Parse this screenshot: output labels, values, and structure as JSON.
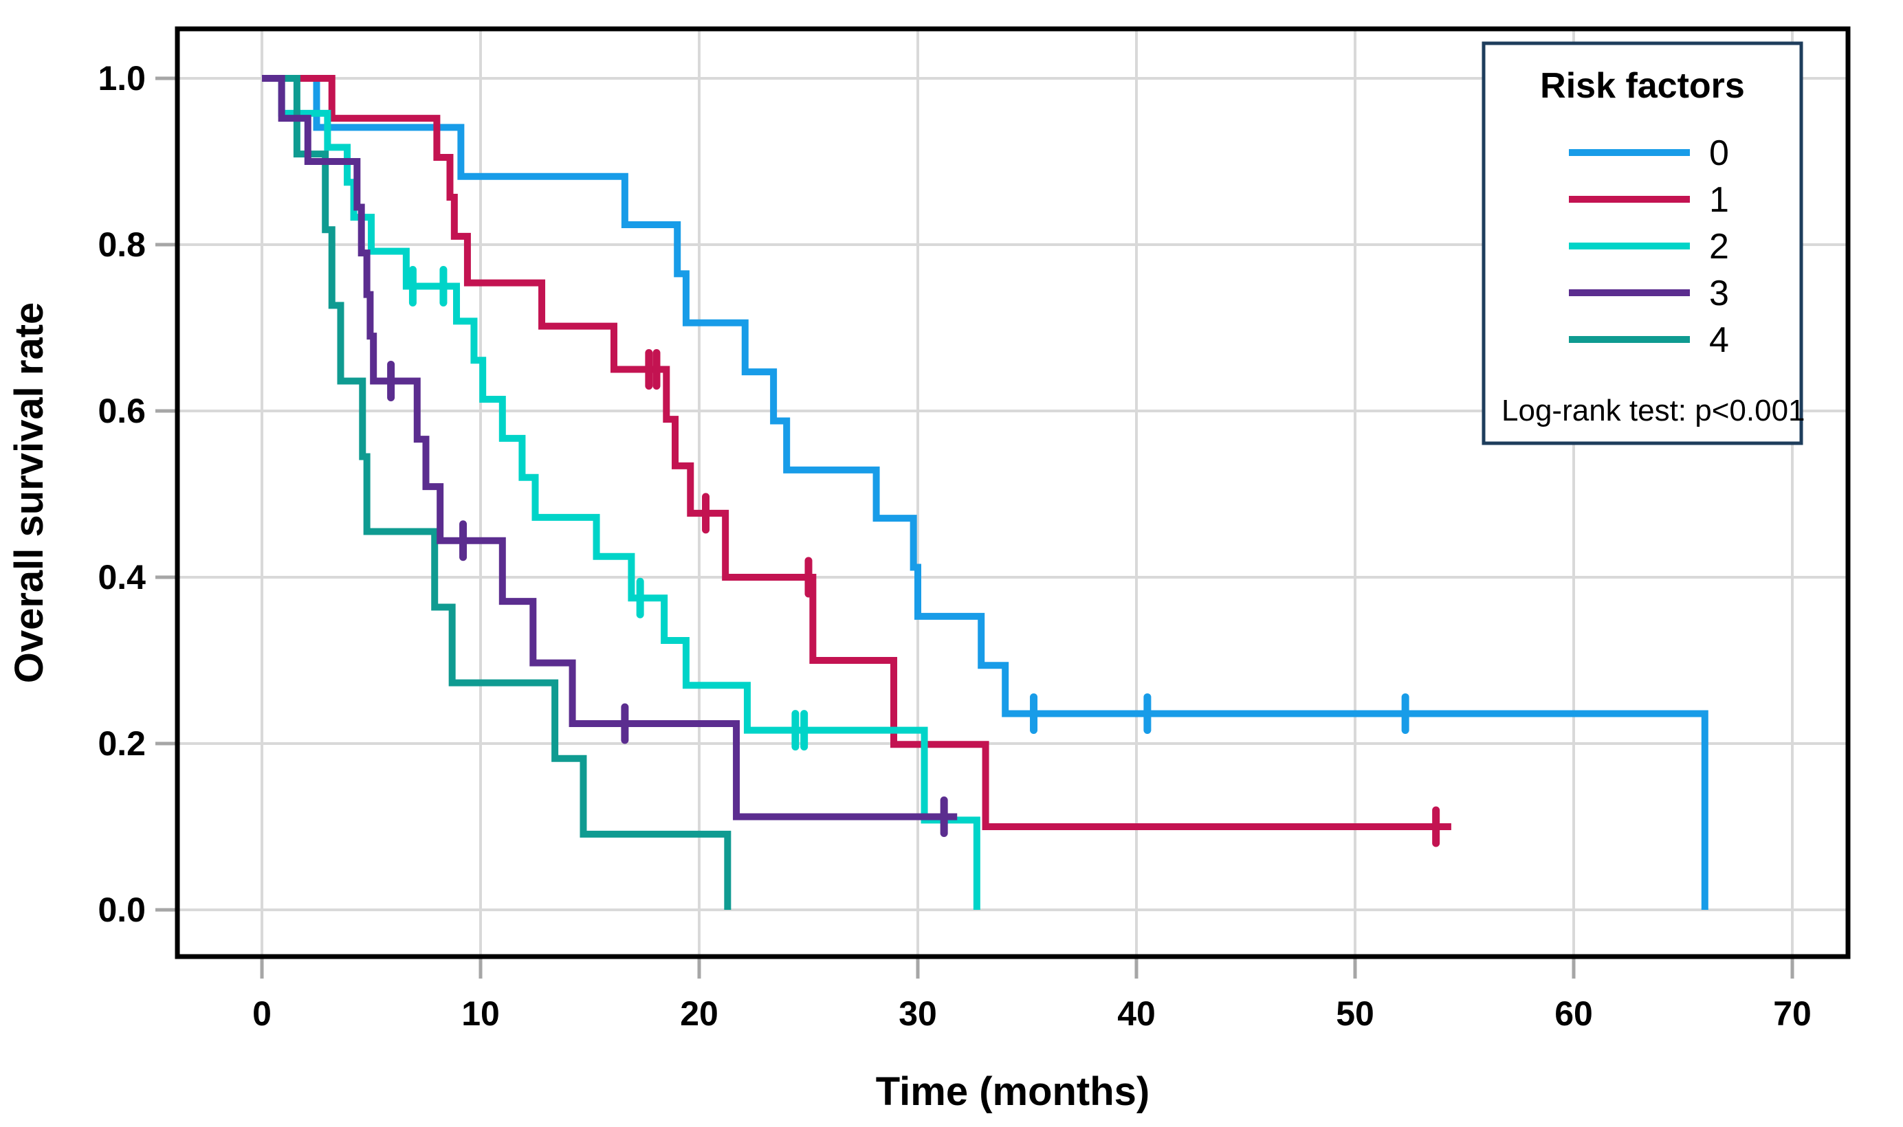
{
  "chart_data": {
    "type": "line",
    "subtype": "kaplan-meier-step",
    "title": "",
    "xlabel": "Time (months)",
    "ylabel": "Overall survival rate",
    "xtick_labels": [
      "0",
      "10",
      "20",
      "30",
      "40",
      "50",
      "60",
      "70"
    ],
    "xtick_values": [
      0,
      10,
      20,
      30,
      40,
      50,
      60,
      70
    ],
    "ytick_labels": [
      "0.0",
      "0.2",
      "0.4",
      "0.6",
      "0.8",
      "1.0"
    ],
    "ytick_values": [
      0,
      0.2,
      0.4,
      0.6,
      0.8,
      1.0
    ],
    "xlim": [
      -3.9,
      72.6
    ],
    "ylim": [
      -0.057,
      1.06
    ],
    "grid": true,
    "legend": {
      "title": "Risk factors",
      "position": "top-right",
      "note": "Log-rank test: p<0.001"
    },
    "draw_order": [
      0,
      1,
      2,
      4,
      3
    ],
    "series": [
      {
        "name": "0",
        "color": "#189CE8",
        "points": [
          [
            0,
            1.0
          ],
          [
            2.5,
            0.941
          ],
          [
            9.1,
            0.882
          ],
          [
            16.6,
            0.824
          ],
          [
            19.0,
            0.765
          ],
          [
            19.4,
            0.706
          ],
          [
            22.1,
            0.647
          ],
          [
            23.4,
            0.588
          ],
          [
            24.0,
            0.529
          ],
          [
            28.1,
            0.471
          ],
          [
            29.8,
            0.412
          ],
          [
            30.0,
            0.353
          ],
          [
            32.9,
            0.294
          ],
          [
            34.0,
            0.236
          ],
          [
            66.0,
            0.0
          ]
        ],
        "censors": [
          [
            35.3,
            0.236
          ],
          [
            40.5,
            0.236
          ],
          [
            52.3,
            0.236
          ]
        ],
        "end_time": 66.0
      },
      {
        "name": "1",
        "color": "#C31351",
        "points": [
          [
            0,
            1.0
          ],
          [
            3.2,
            0.952
          ],
          [
            8.0,
            0.905
          ],
          [
            8.6,
            0.857
          ],
          [
            8.8,
            0.81
          ],
          [
            9.4,
            0.754
          ],
          [
            12.8,
            0.702
          ],
          [
            16.1,
            0.65
          ],
          [
            18.5,
            0.59
          ],
          [
            18.9,
            0.534
          ],
          [
            19.6,
            0.477
          ],
          [
            21.2,
            0.4
          ],
          [
            25.2,
            0.3
          ],
          [
            28.9,
            0.199
          ],
          [
            33.1,
            0.1
          ]
        ],
        "censors": [
          [
            17.7,
            0.65
          ],
          [
            18.05,
            0.65
          ],
          [
            20.3,
            0.477
          ],
          [
            25.0,
            0.4
          ],
          [
            53.7,
            0.1
          ]
        ],
        "end_time": 54.4
      },
      {
        "name": "2",
        "color": "#00D4C8",
        "points": [
          [
            0,
            1.0
          ],
          [
            0.9,
            0.958
          ],
          [
            3.0,
            0.917
          ],
          [
            3.9,
            0.875
          ],
          [
            4.2,
            0.833
          ],
          [
            5.0,
            0.792
          ],
          [
            6.6,
            0.75
          ],
          [
            8.9,
            0.708
          ],
          [
            9.7,
            0.661
          ],
          [
            10.1,
            0.614
          ],
          [
            11.0,
            0.567
          ],
          [
            11.9,
            0.52
          ],
          [
            12.5,
            0.472
          ],
          [
            15.3,
            0.425
          ],
          [
            16.9,
            0.375
          ],
          [
            18.4,
            0.324
          ],
          [
            19.4,
            0.27
          ],
          [
            22.2,
            0.216
          ],
          [
            30.3,
            0.108
          ],
          [
            32.7,
            0.0
          ]
        ],
        "censors": [
          [
            6.9,
            0.75
          ],
          [
            8.3,
            0.75
          ],
          [
            17.3,
            0.375
          ],
          [
            24.4,
            0.216
          ],
          [
            24.8,
            0.216
          ]
        ],
        "end_time": 32.7
      },
      {
        "name": "3",
        "color": "#5B2D8F",
        "points": [
          [
            0,
            1.0
          ],
          [
            0.9,
            0.952
          ],
          [
            2.1,
            0.9
          ],
          [
            4.35,
            0.845
          ],
          [
            4.55,
            0.79
          ],
          [
            4.8,
            0.74
          ],
          [
            4.95,
            0.69
          ],
          [
            5.1,
            0.636
          ],
          [
            7.1,
            0.566
          ],
          [
            7.5,
            0.509
          ],
          [
            8.15,
            0.444
          ],
          [
            11.0,
            0.371
          ],
          [
            12.4,
            0.297
          ],
          [
            14.2,
            0.224
          ],
          [
            21.7,
            0.112
          ]
        ],
        "censors": [
          [
            5.9,
            0.636
          ],
          [
            9.2,
            0.444
          ],
          [
            16.6,
            0.224
          ],
          [
            31.2,
            0.112
          ]
        ],
        "end_time": 31.8
      },
      {
        "name": "4",
        "color": "#0F9B91",
        "points": [
          [
            0,
            1.0
          ],
          [
            1.6,
            0.909
          ],
          [
            2.9,
            0.818
          ],
          [
            3.2,
            0.727
          ],
          [
            3.6,
            0.636
          ],
          [
            4.6,
            0.545
          ],
          [
            4.8,
            0.455
          ],
          [
            7.9,
            0.364
          ],
          [
            8.7,
            0.273
          ],
          [
            13.4,
            0.182
          ],
          [
            14.7,
            0.091
          ],
          [
            21.3,
            0.0
          ]
        ],
        "censors": [],
        "end_time": 21.3
      }
    ],
    "styles": {
      "grid_color": "#D9D9D9",
      "frame_color": "#000000",
      "tick_color": "#A6A6A6",
      "text_color": "#000000",
      "legend_border": "#1E3D5C",
      "background": "#FFFFFF"
    }
  }
}
